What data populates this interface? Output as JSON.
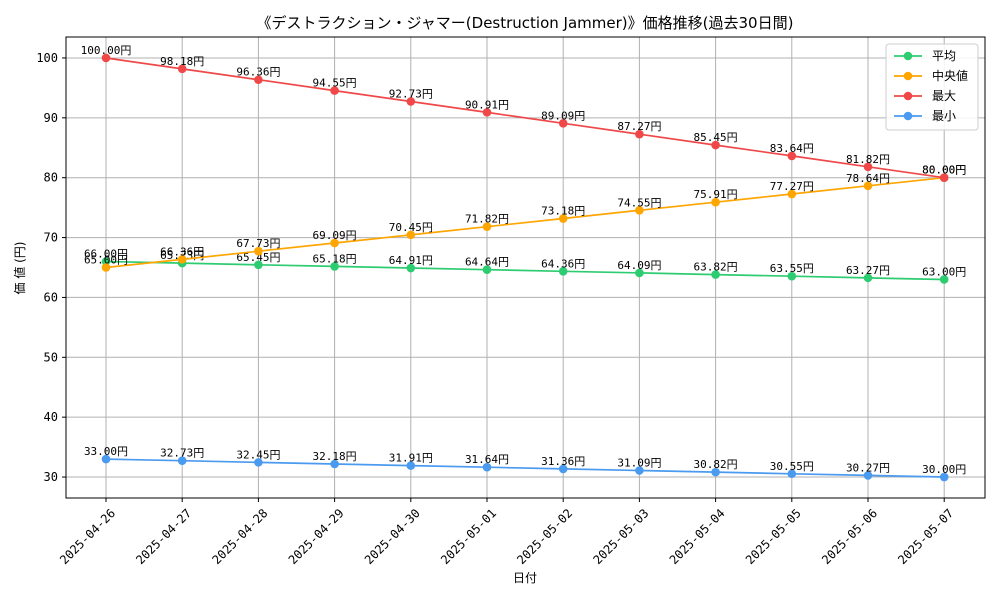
{
  "chart_data": {
    "type": "line",
    "title": "《デストラクション・ジャマー(Destruction Jammer)》価格推移(過去30日間)",
    "xlabel": "日付",
    "ylabel": "価 値 (円)",
    "ylim": [
      26.5,
      103.5
    ],
    "yticks": [
      30,
      40,
      50,
      60,
      70,
      80,
      90,
      100
    ],
    "grid": true,
    "legend_position": "top-right",
    "value_suffix": "円",
    "categories": [
      "2025-04-26",
      "2025-04-27",
      "2025-04-28",
      "2025-04-29",
      "2025-04-30",
      "2025-05-01",
      "2025-05-02",
      "2025-05-03",
      "2025-05-04",
      "2025-05-05",
      "2025-05-06",
      "2025-05-07"
    ],
    "series": [
      {
        "name": "平均",
        "color": "#2ecc71",
        "values": [
          66.0,
          65.73,
          65.45,
          65.18,
          64.91,
          64.64,
          64.36,
          64.09,
          63.82,
          63.55,
          63.27,
          63.0
        ]
      },
      {
        "name": "中央値",
        "color": "#ffa500",
        "values": [
          65.0,
          66.36,
          67.73,
          69.09,
          70.45,
          71.82,
          73.18,
          74.55,
          75.91,
          77.27,
          78.64,
          80.0
        ]
      },
      {
        "name": "最大",
        "color": "#f04848",
        "values": [
          100.0,
          98.18,
          96.36,
          94.55,
          92.73,
          90.91,
          89.09,
          87.27,
          85.45,
          83.64,
          81.82,
          80.0
        ]
      },
      {
        "name": "最小",
        "color": "#4a9af0",
        "values": [
          33.0,
          32.73,
          32.45,
          32.18,
          31.91,
          31.64,
          31.36,
          31.09,
          30.82,
          30.55,
          30.27,
          30.0
        ]
      }
    ]
  }
}
